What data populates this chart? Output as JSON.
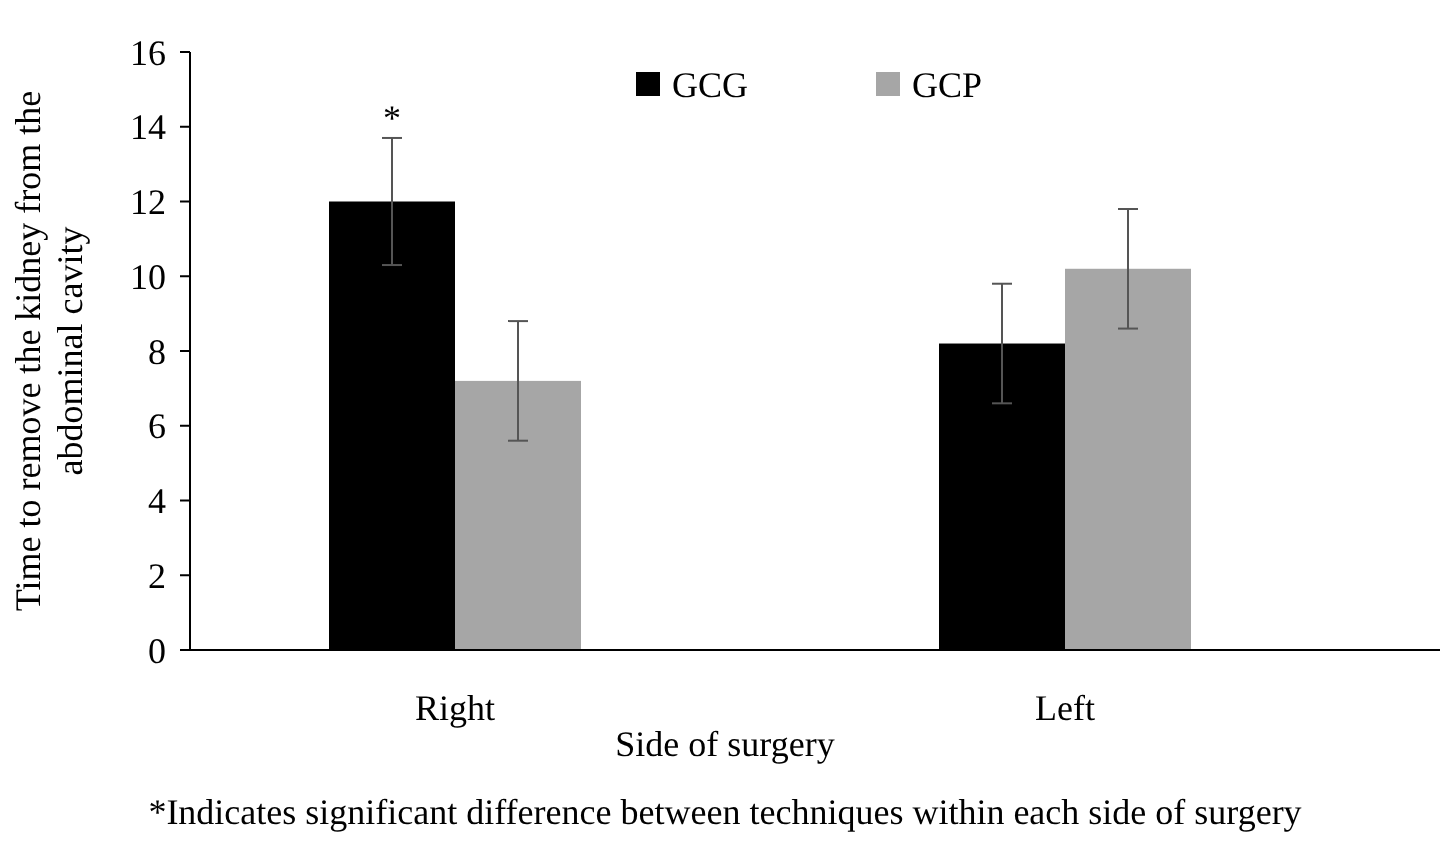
{
  "chart_data": {
    "type": "bar",
    "xlabel": "Side of surgery",
    "ylabel": "Time to remove the kidney from the abdominal cavity",
    "categories": [
      "Right",
      "Left"
    ],
    "series": [
      {
        "name": "GCG",
        "color": "#000000",
        "values": [
          12,
          8.2
        ],
        "errors": [
          1.7,
          1.6
        ]
      },
      {
        "name": "GCP",
        "color": "#a6a6a6",
        "values": [
          7.2,
          10.2
        ],
        "errors": [
          1.6,
          1.6
        ]
      }
    ],
    "ylim": [
      0,
      16
    ],
    "yticks": [
      0,
      2,
      4,
      6,
      8,
      10,
      12,
      14,
      16
    ],
    "grid": false,
    "legend": "top",
    "annotations": [
      {
        "text": "*",
        "x": "Right",
        "y": 12
      },
      "*Indicates significant difference between techniques within each side of surgery"
    ]
  }
}
